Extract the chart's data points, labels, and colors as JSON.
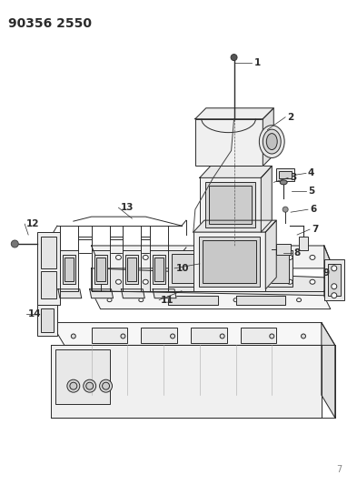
{
  "title": "90356 2550",
  "bg_color": "#ffffff",
  "lc": "#2a2a2a",
  "lw": 0.7,
  "fig_width": 3.93,
  "fig_height": 5.33,
  "dpi": 100,
  "label_fs": 7.5,
  "title_fs": 10
}
